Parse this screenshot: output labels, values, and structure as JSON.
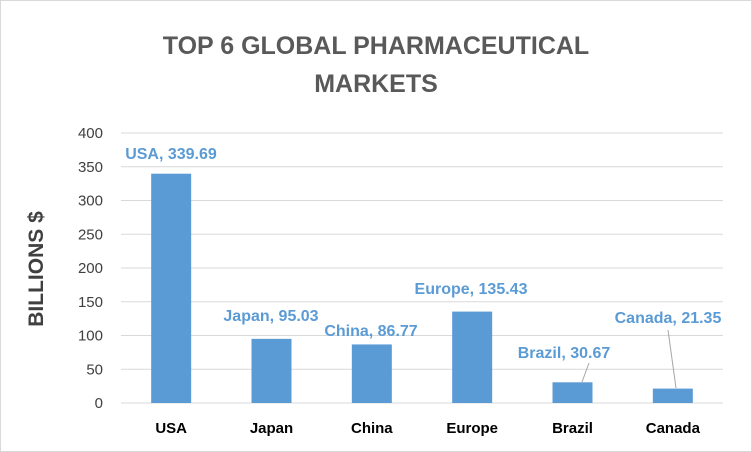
{
  "chart_data": {
    "type": "bar",
    "title": "TOP 6 GLOBAL PHARMACEUTICAL MARKETS",
    "title_lines": [
      "TOP 6 GLOBAL PHARMACEUTICAL",
      "MARKETS"
    ],
    "ylabel": "BILLIONS $",
    "xlabel": "",
    "categories": [
      "USA",
      "Japan",
      "China",
      "Europe",
      "Brazil",
      "Canada"
    ],
    "values": [
      339.69,
      95.03,
      86.77,
      135.43,
      30.67,
      21.35
    ],
    "data_labels": [
      "USA, 339.69",
      "Japan, 95.03",
      "China, 86.77",
      "Europe, 135.43",
      "Brazil, 30.67",
      "Canada, 21.35"
    ],
    "ylim": [
      0,
      400
    ],
    "yticks": [
      0,
      50,
      100,
      150,
      200,
      250,
      300,
      350,
      400
    ],
    "grid": true,
    "legend": "none",
    "colors": {
      "bar": "#5b9bd5",
      "label": "#5b9bd5",
      "grid": "#d9d9d9",
      "title": "#595959"
    }
  }
}
